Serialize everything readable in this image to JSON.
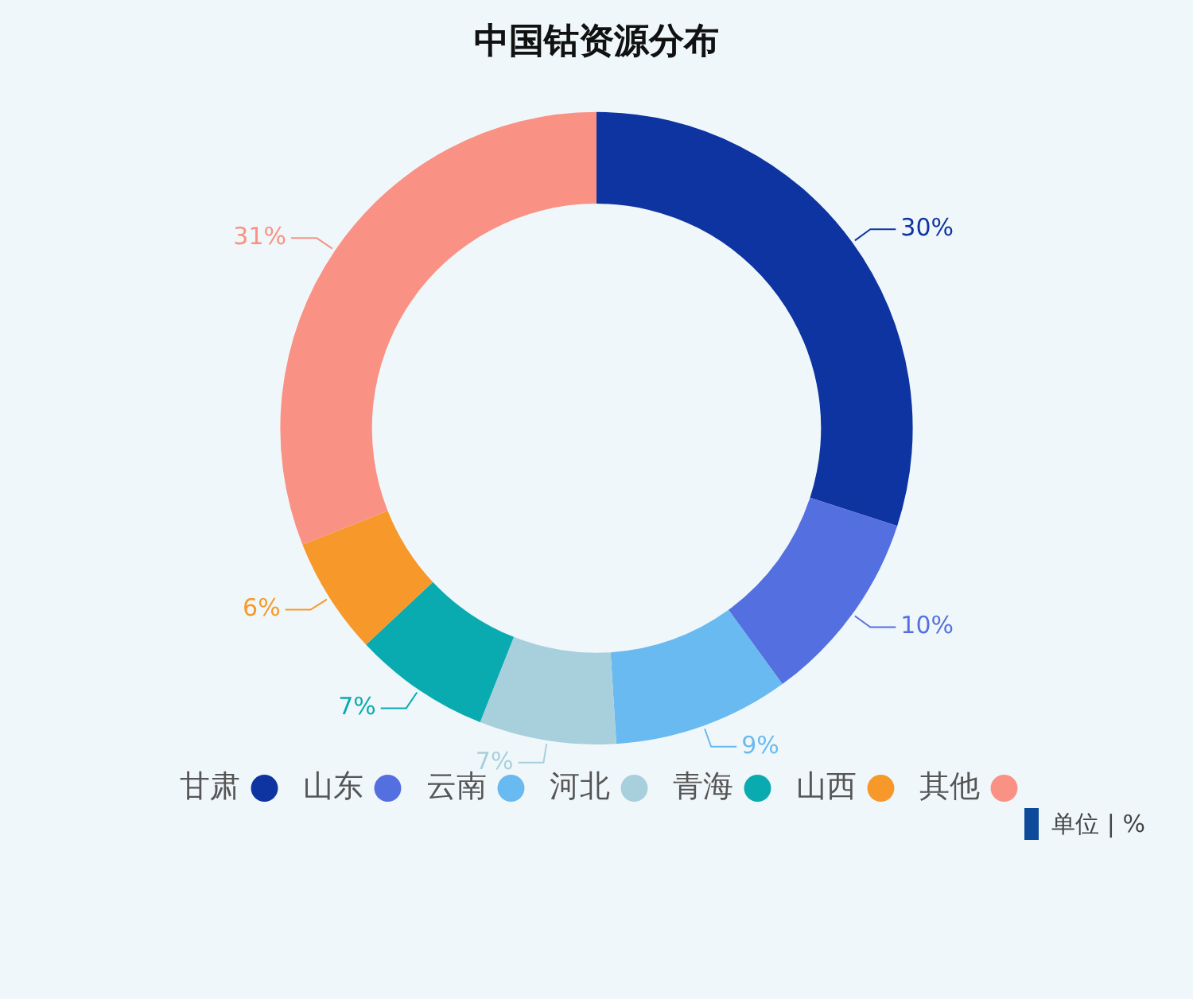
{
  "chart_data": {
    "type": "donut",
    "title": "中国钴资源分布",
    "categories": [
      "甘肃",
      "山东",
      "云南",
      "河北",
      "青海",
      "山西",
      "其他"
    ],
    "values": [
      30,
      10,
      9,
      7,
      7,
      6,
      31
    ],
    "colors": [
      "#0d34a0",
      "#5470e0",
      "#68baf0",
      "#a8d0dc",
      "#0aabb0",
      "#f7992a",
      "#f99284"
    ],
    "value_labels": [
      "30%",
      "10%",
      "9%",
      "7%",
      "7%",
      "6%",
      "31%"
    ],
    "legend": "bottom",
    "annotations": [
      "单位 | %"
    ]
  }
}
